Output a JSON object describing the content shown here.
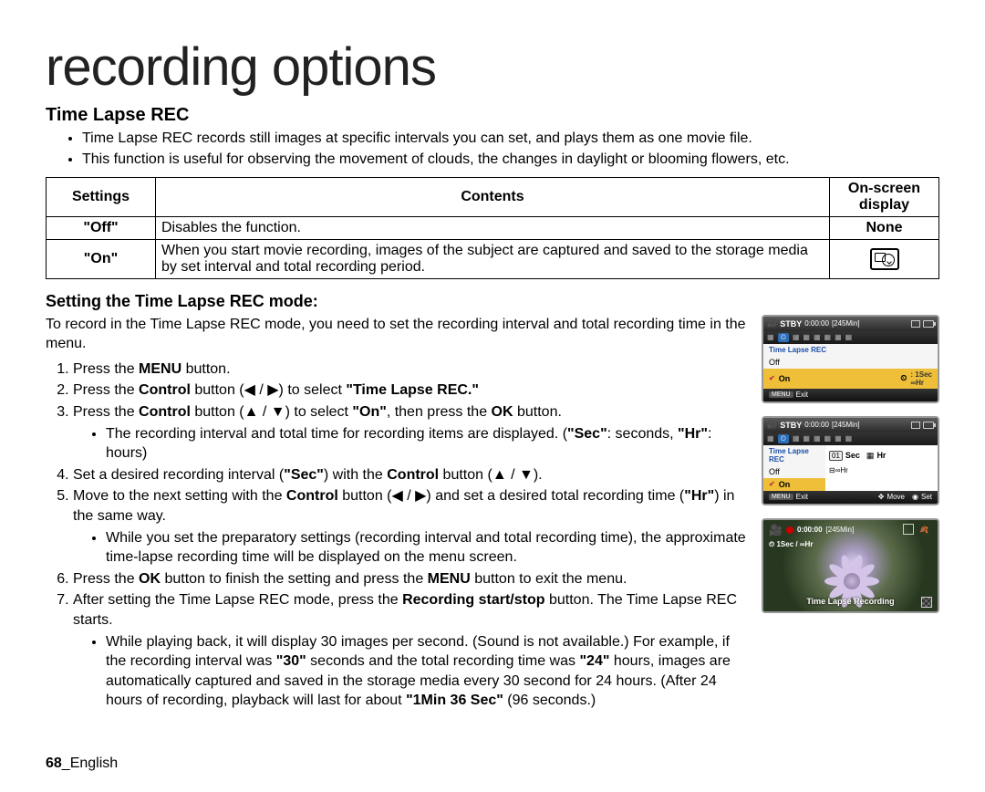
{
  "page_title": "recording options",
  "section_title": "Time Lapse REC",
  "intro_bullets": [
    "Time Lapse REC records still images at specific intervals you can set, and plays them as one movie file.",
    "This function is useful for observing the movement of clouds, the changes in daylight or blooming flowers, etc."
  ],
  "table": {
    "headers": [
      "Settings",
      "Contents",
      "On-screen display"
    ],
    "rows": [
      {
        "setting": "\"Off\"",
        "content": "Disables the function.",
        "display": "None",
        "display_is_text": true
      },
      {
        "setting": "\"On\"",
        "content": "When you start movie recording, images of the subject are captured and saved to the storage media by set interval and total recording period.",
        "display": "timelapse-icon",
        "display_is_text": false
      }
    ]
  },
  "sub_title": "Setting the Time Lapse REC mode:",
  "intro_text": "To record in the Time Lapse REC mode, you need to set the recording interval and total recording time in the menu.",
  "steps_html": [
    "Press the <b>MENU</b> button.",
    "Press the <b>Control</b> button (◀ / ▶) to select <b>\"Time Lapse REC.\"</b>",
    "Press the <b>Control</b> button (▲ / ▼) to select <b>\"On\"</b>, then press the <b>OK</b> button.<ul class=\"sub\"><li>The recording interval and total time for recording items are displayed. (<b>\"Sec\"</b>: seconds, <b>\"Hr\"</b>: hours)</li></ul>",
    "Set a desired recording interval (<b>\"Sec\"</b>) with the <b>Control</b> button (▲ / ▼).",
    "Move to the next setting with the <b>Control</b> button (◀ / ▶) and set a desired total recording time (<b>\"Hr\"</b>) in the same way.<ul class=\"sub\"><li>While you set the preparatory settings (recording interval and total recording time), the approximate time-lapse recording time will be displayed on the menu screen.</li></ul>",
    "Press the <b>OK</b> button to finish the setting and press the <b>MENU</b> button to exit the menu.",
    "After setting the Time Lapse REC mode, press the <b>Recording start/stop</b> button. The Time Lapse REC starts.<ul class=\"sub\"><li>While playing back, it will display 30 images per second. (Sound is not available.) For example, if the recording interval was <b>\"30\"</b> seconds and the total recording time was <b>\"24\"</b> hours, images are automatically captured and saved in the storage media every 30 second for 24 hours. (After 24 hours of recording, playback will last for about <b>\"1Min 36 Sec\"</b> (96 seconds.)</li></ul>"
  ],
  "camera_screens": {
    "screen1": {
      "stby": "STBY",
      "time": "0:00:00",
      "bracket": "[245Min]",
      "menu_title": "Time Lapse REC",
      "off_label": "Off",
      "on_label": "On",
      "on_val_top": ": 1Sec",
      "on_val_bot": "∞Hr",
      "exit": "Exit",
      "menu_btn": "MENU"
    },
    "screen2": {
      "stby": "STBY",
      "time": "0:00:00",
      "bracket": "[245Min]",
      "menu_title": "Time Lapse REC",
      "off_label": "Off",
      "on_label": "On",
      "sec_val": "01",
      "sec_lbl": "Sec",
      "hr_lbl": "Hr",
      "sum": "⊟∞Hr",
      "exit": "Exit",
      "move": "Move",
      "set": "Set",
      "menu_btn": "MENU"
    },
    "screen3": {
      "time": "0:00:00",
      "bracket": "[245Min]",
      "interval": "1Sec / ∞Hr",
      "label": "Time Lapse Recording"
    }
  },
  "footer": {
    "page": "68",
    "lang": "English"
  },
  "colors": {
    "accent_blue": "#2a6db8",
    "menu_hl": "#efbf3a",
    "title_blue": "#1a4ea8"
  }
}
